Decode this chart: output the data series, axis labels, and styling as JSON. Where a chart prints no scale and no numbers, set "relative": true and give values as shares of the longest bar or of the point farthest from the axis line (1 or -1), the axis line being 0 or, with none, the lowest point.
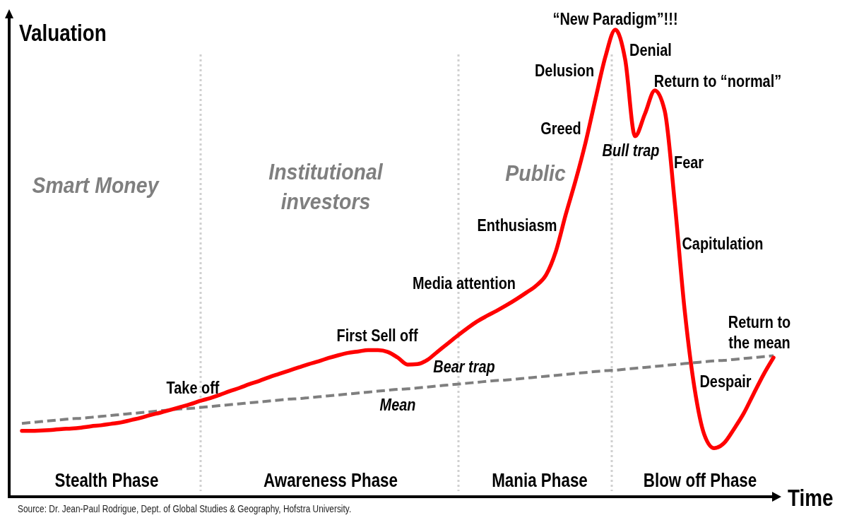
{
  "chart_data": {
    "type": "line",
    "relative": true,
    "xlabel": "Time",
    "ylabel": "Valuation",
    "categories": [
      null,
      null,
      null,
      null,
      null,
      null,
      null,
      null,
      null,
      null,
      null,
      null,
      null,
      null,
      null,
      null,
      null,
      null,
      null,
      null,
      null,
      null,
      null,
      null,
      null,
      null,
      null,
      null,
      null,
      null,
      null,
      null,
      null,
      null,
      null,
      null,
      null,
      null,
      null,
      null,
      null,
      null,
      null,
      null,
      null,
      null,
      null,
      null,
      null,
      null,
      null,
      null,
      null,
      null,
      null,
      null,
      null,
      null,
      null,
      null,
      null,
      null,
      null,
      null,
      null,
      null,
      null,
      null,
      null,
      null,
      null,
      null,
      null,
      null,
      null,
      null,
      null
    ],
    "series": [
      {
        "name": "Mean",
        "color": "#7f7f7f",
        "line_style": "dashed",
        "values": [
          0.157,
          0.159,
          0.161,
          0.163,
          0.165,
          0.167,
          0.168,
          0.17,
          0.172,
          0.174,
          0.176,
          0.178,
          0.18,
          0.182,
          0.184,
          0.186,
          0.188,
          0.189,
          0.191,
          0.193,
          0.195,
          0.197,
          0.199,
          0.201,
          0.203,
          0.205,
          0.207,
          0.209,
          0.21,
          0.212,
          0.214,
          0.216,
          0.218,
          0.22,
          0.222,
          0.224,
          0.226,
          0.228,
          0.23,
          0.231,
          0.233,
          0.235,
          0.237,
          0.239,
          0.241,
          0.243,
          0.245,
          0.247,
          0.249,
          0.25,
          0.252,
          0.254,
          0.256,
          0.258,
          0.26,
          0.262,
          0.264,
          0.266,
          0.268,
          0.27,
          0.271,
          0.273,
          0.275,
          0.277,
          0.279,
          0.281,
          0.283,
          0.285,
          0.287,
          0.289,
          0.291,
          0.292,
          0.294,
          0.296,
          0.298,
          0.3,
          0.302
        ]
      },
      {
        "color": "#ff0000",
        "values": [
          0.141,
          0.141,
          0.142,
          0.143,
          0.145,
          0.146,
          0.148,
          0.151,
          0.153,
          0.156,
          0.159,
          0.164,
          0.169,
          0.175,
          0.18,
          0.186,
          0.192,
          0.198,
          0.205,
          0.211,
          0.218,
          0.226,
          0.233,
          0.241,
          0.248,
          0.256,
          0.263,
          0.27,
          0.277,
          0.284,
          0.29,
          0.297,
          0.303,
          0.308,
          0.311,
          0.314,
          0.314,
          0.31,
          0.298,
          0.283,
          0.284,
          0.293,
          0.31,
          0.327,
          0.344,
          0.36,
          0.375,
          0.387,
          0.398,
          0.41,
          0.423,
          0.437,
          0.452,
          0.475,
          0.526,
          0.605,
          0.678,
          0.759,
          0.852,
          0.942,
          1,
          0.936,
          0.772,
          0.82,
          0.87,
          0.826,
          0.632,
          0.402,
          0.234,
          0.133,
          0.104,
          0.115,
          0.145,
          0.179,
          0.221,
          0.262,
          0.298
        ]
      }
    ],
    "annotations": [
      "Stealth Phase",
      "Awareness Phase",
      "Mania Phase",
      "Blow off Phase",
      "Smart Money",
      "Institutional investors",
      "Public",
      "Take off",
      "First Sell off",
      "Bear trap",
      "Media attention",
      "Enthusiasm",
      "Greed",
      "Delusion",
      "“New Paradigm”!!!",
      "Denial",
      "Bull trap",
      "Return to “normal”",
      "Fear",
      "Capitulation",
      "Despair",
      "Return to the mean",
      "Source: Dr. Jean-Paul Rodrigue, Dept. of Global Studies & Geography, Hofstra University."
    ]
  }
}
